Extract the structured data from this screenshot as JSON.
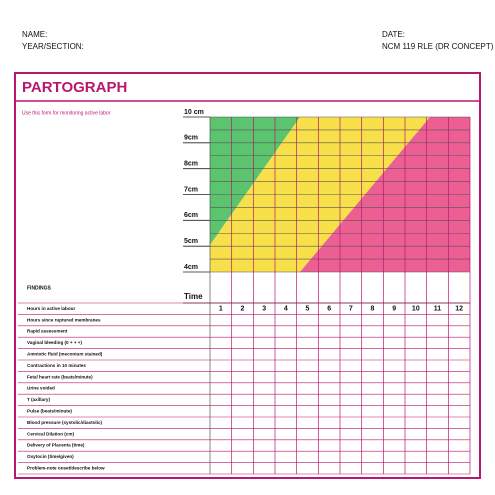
{
  "header": {
    "name_label": "NAME:",
    "year_section_label": "YEAR/SECTION:",
    "date_label": "DATE:",
    "course": "NCM 119 RLE (DR CONCEPT)"
  },
  "form": {
    "title": "PARTOGRAPH",
    "subtitle": "Use this form for monitoring active labor",
    "dilation_labels": [
      "10 cm",
      "9cm",
      "8cm",
      "7cm",
      "6cm",
      "5cm",
      "4cm"
    ],
    "findings_label": "FINDINGS",
    "time_label": "Time",
    "hours": [
      1,
      2,
      3,
      4,
      5,
      6,
      7,
      8,
      9,
      10,
      11,
      12
    ],
    "findings": [
      "Hours in active labour",
      "Hours since ruptured membranes",
      "Rapid assessment",
      "Vaginal bleeding (0 + + +)",
      "Amniotic fluid (meconium stained)",
      "Contractions in 10 minutes",
      "Fetal heart rate (beats/minute)",
      "Urine voided",
      "T (axillary)",
      "Pulse (beats/minute)",
      "Blood pressure (systolic/diastolic)",
      "Cervical Dilation (cm)",
      "Delivery of Placenta (time)",
      "Oxytocin (time/given)",
      "Problem-note onset/describe below"
    ]
  }
}
